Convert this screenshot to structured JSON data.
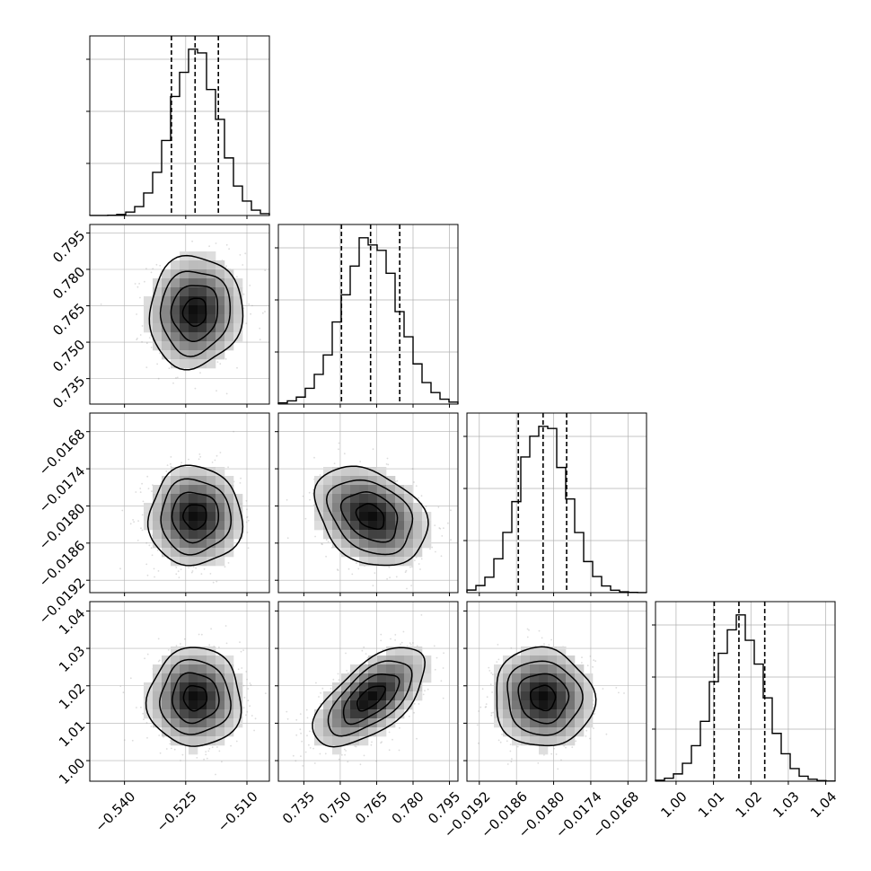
{
  "chart_data": {
    "type": "corner",
    "grid": true,
    "params": [
      {
        "range": [
          -0.5485,
          -0.5045
        ],
        "ticks": [
          -0.54,
          -0.525,
          -0.51
        ],
        "tick_labels": [
          "−0.540",
          "−0.525",
          "−0.510"
        ],
        "quantiles": [
          -0.5285,
          -0.5227,
          -0.517
        ],
        "mean": -0.5227,
        "sd": 0.0057
      },
      {
        "range": [
          0.7245,
          0.7985
        ],
        "ticks": [
          0.735,
          0.75,
          0.765,
          0.78,
          0.795
        ],
        "tick_labels": [
          "0.735",
          "0.750",
          "0.765",
          "0.780",
          "0.795"
        ],
        "quantiles": [
          0.7505,
          0.7625,
          0.7745
        ],
        "mean": 0.7625,
        "sd": 0.0115
      },
      {
        "range": [
          -0.0194,
          -0.0165
        ],
        "ticks": [
          -0.0192,
          -0.0186,
          -0.018,
          -0.0174,
          -0.0168
        ],
        "tick_labels": [
          "−0.0192",
          "−0.0186",
          "−0.0180",
          "−0.0174",
          "−0.0168"
        ],
        "quantiles": [
          -0.01857,
          -0.01817,
          -0.01779
        ],
        "mean": -0.01817,
        "sd": 0.0004
      },
      {
        "range": [
          0.9945,
          1.0425
        ],
        "ticks": [
          1.0,
          1.01,
          1.02,
          1.03,
          1.04
        ],
        "tick_labels": [
          "1.00",
          "1.01",
          "1.02",
          "1.03",
          "1.04"
        ],
        "quantiles": [
          1.0102,
          1.0168,
          1.0237
        ],
        "mean": 1.0168,
        "sd": 0.0066
      }
    ],
    "correlations": [
      [
        1,
        0.05,
        0.0,
        0.0
      ],
      [
        0.05,
        1,
        -0.3,
        0.62
      ],
      [
        0.0,
        -0.3,
        1,
        -0.05
      ],
      [
        0.0,
        0.62,
        -0.05,
        1
      ]
    ],
    "histogram_style": "step",
    "quantile_line_style": "dashed",
    "contour_levels": 3
  }
}
